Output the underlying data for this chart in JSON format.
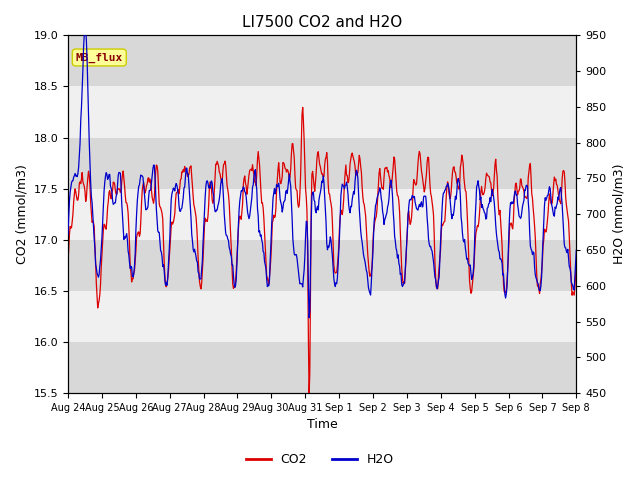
{
  "title": "LI7500 CO2 and H2O",
  "xlabel": "Time",
  "ylabel_left": "CO2 (mmol/m3)",
  "ylabel_right": "H2O (mmol/m3)",
  "ylim_left": [
    15.5,
    19.0
  ],
  "ylim_right": [
    450,
    950
  ],
  "yticks_left": [
    15.5,
    16.0,
    16.5,
    17.0,
    17.5,
    18.0,
    18.5,
    19.0
  ],
  "yticks_right": [
    450,
    500,
    550,
    600,
    650,
    700,
    750,
    800,
    850,
    900,
    950
  ],
  "xtick_labels": [
    "Aug 24",
    "Aug 25",
    "Aug 26",
    "Aug 27",
    "Aug 28",
    "Aug 29",
    "Aug 30",
    "Aug 31",
    "Sep 1",
    "Sep 2",
    "Sep 3",
    "Sep 4",
    "Sep 5",
    "Sep 6",
    "Sep 7",
    "Sep 8"
  ],
  "co2_color": "#dd0000",
  "h2o_color": "#0000cc",
  "linewidth": 0.9,
  "bg_color": "#ffffff",
  "plot_bg_light": "#f0f0f0",
  "plot_bg_dark": "#d8d8d8",
  "annotation_text": "MB_flux",
  "annotation_bg": "#ffff99",
  "annotation_border": "#cccc00",
  "annotation_text_color": "#880000",
  "legend_co2": "CO2",
  "legend_h2o": "H2O",
  "figsize": [
    6.4,
    4.8
  ],
  "dpi": 100
}
